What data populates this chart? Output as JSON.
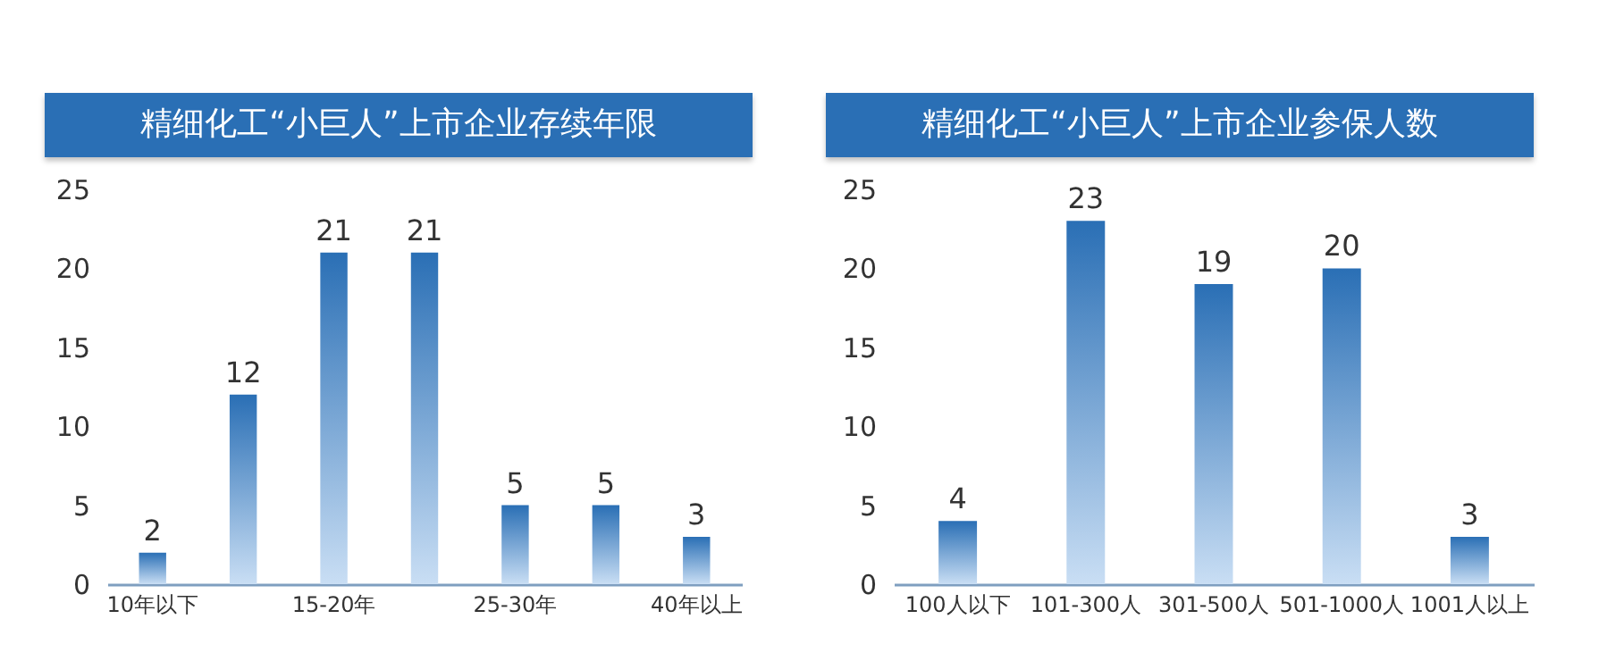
{
  "chart_data": [
    {
      "type": "bar",
      "title": "精细化工“小巨人”上市企业存续年限",
      "categories": [
        "10年以下",
        null,
        "15-20年",
        null,
        "25-30年",
        null,
        "40年以上"
      ],
      "values": [
        2,
        12,
        21,
        21,
        5,
        5,
        3
      ],
      "color": "#2a6fb5",
      "ylim": [
        0,
        25
      ],
      "yticks": [
        0,
        5,
        10,
        15,
        20,
        25
      ],
      "grid": false,
      "data_labels": true
    },
    {
      "type": "bar",
      "title": "精细化工“小巨人”上市企业参保人数",
      "categories": [
        "100人以下",
        "101-300人",
        "301-500人",
        "501-1000人",
        "1001人以上"
      ],
      "values": [
        4,
        23,
        19,
        20,
        3
      ],
      "color": "#2a6fb5",
      "ylim": [
        0,
        25
      ],
      "yticks": [
        0,
        5,
        10,
        15,
        20,
        25
      ],
      "grid": false,
      "data_labels": true
    }
  ]
}
